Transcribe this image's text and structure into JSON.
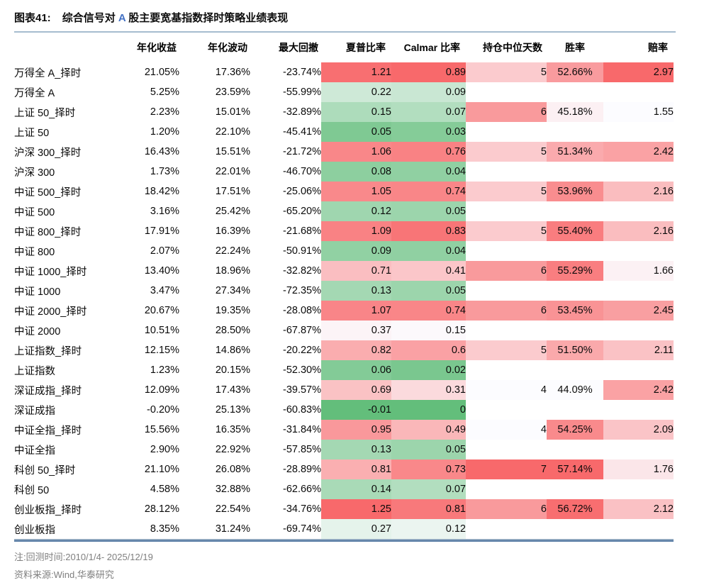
{
  "title": {
    "label": "图表41:",
    "pre": "综合信号对 ",
    "highlight": "A",
    "post": " 股主要宽基指数择时策略业绩表现"
  },
  "footnotes": {
    "note": "注:回测时间:2010/1/4- 2025/12/19",
    "source": "资料来源:Wind,华泰研究"
  },
  "chart_data": {
    "type": "table",
    "title": "综合信号对 A 股主要宽基指数择时策略业绩表现",
    "headers": [
      "年化收益",
      "年化波动",
      "最大回撤",
      "夏普比率",
      "Calmar 比率",
      "持仓中位天数",
      "胜率",
      "赔率"
    ],
    "columns": [
      {
        "key": "name"
      },
      {
        "key": "ret"
      },
      {
        "key": "vol"
      },
      {
        "key": "dd"
      },
      {
        "key": "sharpe",
        "scale": "sharpe"
      },
      {
        "key": "calmar",
        "scale": "calmar"
      },
      {
        "key": "days",
        "scale": "days"
      },
      {
        "key": "win",
        "scale": "win"
      },
      {
        "key": "odds",
        "scale": "odds"
      }
    ],
    "scales": {
      "sharpe": {
        "type": "3color",
        "min": -0.01,
        "mid": 0.32,
        "max": 1.25
      },
      "calmar": {
        "type": "3color",
        "min": 0.0,
        "mid": 0.135,
        "max": 0.89
      },
      "days": {
        "type": "2color",
        "min": 4,
        "max": 7
      },
      "win": {
        "type": "2color",
        "min": 44.09,
        "max": 57.14
      },
      "odds": {
        "type": "2color",
        "min": 1.55,
        "max": 2.97
      }
    },
    "colors": {
      "red": "#F8696B",
      "white": "#FCFCFF",
      "green": "#63BE7B"
    },
    "rows": [
      {
        "name": "万得全 A_择时",
        "ret": "21.05%",
        "vol": "17.36%",
        "dd": "-23.74%",
        "sharpe": "1.21",
        "calmar": "0.89",
        "days": "5",
        "win": "52.66%",
        "odds": "2.97"
      },
      {
        "name": "万得全 A",
        "ret": "5.25%",
        "vol": "23.59%",
        "dd": "-55.99%",
        "sharpe": "0.22",
        "calmar": "0.09",
        "days": "",
        "win": "",
        "odds": ""
      },
      {
        "name": "上证 50_择时",
        "ret": "2.23%",
        "vol": "15.01%",
        "dd": "-32.89%",
        "sharpe": "0.15",
        "calmar": "0.07",
        "days": "6",
        "win": "45.18%",
        "odds": "1.55"
      },
      {
        "name": "上证 50",
        "ret": "1.20%",
        "vol": "22.10%",
        "dd": "-45.41%",
        "sharpe": "0.05",
        "calmar": "0.03",
        "days": "",
        "win": "",
        "odds": ""
      },
      {
        "name": "沪深 300_择时",
        "ret": "16.43%",
        "vol": "15.51%",
        "dd": "-21.72%",
        "sharpe": "1.06",
        "calmar": "0.76",
        "days": "5",
        "win": "51.34%",
        "odds": "2.42"
      },
      {
        "name": "沪深 300",
        "ret": "1.73%",
        "vol": "22.01%",
        "dd": "-46.70%",
        "sharpe": "0.08",
        "calmar": "0.04",
        "days": "",
        "win": "",
        "odds": ""
      },
      {
        "name": "中证 500_择时",
        "ret": "18.42%",
        "vol": "17.51%",
        "dd": "-25.06%",
        "sharpe": "1.05",
        "calmar": "0.74",
        "days": "5",
        "win": "53.96%",
        "odds": "2.16"
      },
      {
        "name": "中证 500",
        "ret": "3.16%",
        "vol": "25.42%",
        "dd": "-65.20%",
        "sharpe": "0.12",
        "calmar": "0.05",
        "days": "",
        "win": "",
        "odds": ""
      },
      {
        "name": "中证 800_择时",
        "ret": "17.91%",
        "vol": "16.39%",
        "dd": "-21.68%",
        "sharpe": "1.09",
        "calmar": "0.83",
        "days": "5",
        "win": "55.40%",
        "odds": "2.16"
      },
      {
        "name": "中证 800",
        "ret": "2.07%",
        "vol": "22.24%",
        "dd": "-50.91%",
        "sharpe": "0.09",
        "calmar": "0.04",
        "days": "",
        "win": "",
        "odds": ""
      },
      {
        "name": "中证 1000_择时",
        "ret": "13.40%",
        "vol": "18.96%",
        "dd": "-32.82%",
        "sharpe": "0.71",
        "calmar": "0.41",
        "days": "6",
        "win": "55.29%",
        "odds": "1.66"
      },
      {
        "name": "中证 1000",
        "ret": "3.47%",
        "vol": "27.34%",
        "dd": "-72.35%",
        "sharpe": "0.13",
        "calmar": "0.05",
        "days": "",
        "win": "",
        "odds": ""
      },
      {
        "name": "中证 2000_择时",
        "ret": "20.67%",
        "vol": "19.35%",
        "dd": "-28.08%",
        "sharpe": "1.07",
        "calmar": "0.74",
        "days": "6",
        "win": "53.45%",
        "odds": "2.45"
      },
      {
        "name": "中证 2000",
        "ret": "10.51%",
        "vol": "28.50%",
        "dd": "-67.87%",
        "sharpe": "0.37",
        "calmar": "0.15",
        "days": "",
        "win": "",
        "odds": ""
      },
      {
        "name": "上证指数_择时",
        "ret": "12.15%",
        "vol": "14.86%",
        "dd": "-20.22%",
        "sharpe": "0.82",
        "calmar": "0.6",
        "days": "5",
        "win": "51.50%",
        "odds": "2.11"
      },
      {
        "name": "上证指数",
        "ret": "1.23%",
        "vol": "20.15%",
        "dd": "-52.30%",
        "sharpe": "0.06",
        "calmar": "0.02",
        "days": "",
        "win": "",
        "odds": ""
      },
      {
        "name": "深证成指_择时",
        "ret": "12.09%",
        "vol": "17.43%",
        "dd": "-39.57%",
        "sharpe": "0.69",
        "calmar": "0.31",
        "days": "4",
        "win": "44.09%",
        "odds": "2.42"
      },
      {
        "name": "深证成指",
        "ret": "-0.20%",
        "vol": "25.13%",
        "dd": "-60.83%",
        "sharpe": "-0.01",
        "calmar": "0",
        "days": "",
        "win": "",
        "odds": ""
      },
      {
        "name": "中证全指_择时",
        "ret": "15.56%",
        "vol": "16.35%",
        "dd": "-31.84%",
        "sharpe": "0.95",
        "calmar": "0.49",
        "days": "4",
        "win": "54.25%",
        "odds": "2.09"
      },
      {
        "name": "中证全指",
        "ret": "2.90%",
        "vol": "22.92%",
        "dd": "-57.85%",
        "sharpe": "0.13",
        "calmar": "0.05",
        "days": "",
        "win": "",
        "odds": ""
      },
      {
        "name": "科创 50_择时",
        "ret": "21.10%",
        "vol": "26.08%",
        "dd": "-28.89%",
        "sharpe": "0.81",
        "calmar": "0.73",
        "days": "7",
        "win": "57.14%",
        "odds": "1.76"
      },
      {
        "name": "科创 50",
        "ret": "4.58%",
        "vol": "32.88%",
        "dd": "-62.66%",
        "sharpe": "0.14",
        "calmar": "0.07",
        "days": "",
        "win": "",
        "odds": ""
      },
      {
        "name": "创业板指_择时",
        "ret": "28.12%",
        "vol": "22.54%",
        "dd": "-34.76%",
        "sharpe": "1.25",
        "calmar": "0.81",
        "days": "6",
        "win": "56.72%",
        "odds": "2.12"
      },
      {
        "name": "创业板指",
        "ret": "8.35%",
        "vol": "31.24%",
        "dd": "-69.74%",
        "sharpe": "0.27",
        "calmar": "0.12",
        "days": "",
        "win": "",
        "odds": ""
      }
    ]
  }
}
